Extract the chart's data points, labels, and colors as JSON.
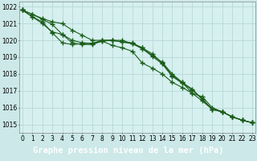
{
  "title": "Graphe pression niveau de la mer (hPa)",
  "background_color": "#cce8e8",
  "plot_bg": "#d6f0ef",
  "grid_color": "#b8d8d8",
  "line_color": "#1a5c1a",
  "x_ticks": [
    0,
    1,
    2,
    3,
    4,
    5,
    6,
    7,
    8,
    9,
    10,
    11,
    12,
    13,
    14,
    15,
    16,
    17,
    18,
    19,
    20,
    21,
    22,
    23
  ],
  "y_ticks": [
    1015,
    1016,
    1017,
    1018,
    1019,
    1020,
    1021,
    1022
  ],
  "ylim": [
    1014.5,
    1022.3
  ],
  "xlim": [
    -0.3,
    23.3
  ],
  "series": [
    [
      1021.8,
      1021.55,
      1021.3,
      1021.1,
      1021.0,
      1020.6,
      1020.3,
      1020.0,
      1020.0,
      1020.0,
      1019.9,
      1019.8,
      1019.55,
      1019.1,
      1018.7,
      1018.0,
      1017.5,
      1016.85,
      1016.4,
      1015.9,
      1015.75,
      1015.45,
      1015.25,
      1015.1
    ],
    [
      1021.8,
      1021.55,
      1021.25,
      1020.95,
      1020.35,
      1020.0,
      1019.85,
      1019.82,
      1020.0,
      1020.0,
      1020.0,
      1019.8,
      1019.5,
      1019.05,
      1018.6,
      1017.85,
      1017.45,
      1017.05,
      1016.5,
      1015.9,
      1015.75,
      1015.45,
      1015.25,
      1015.1
    ],
    [
      1021.8,
      1021.4,
      1021.0,
      1020.5,
      1020.35,
      1019.85,
      1019.75,
      1019.75,
      1019.95,
      1020.0,
      1019.9,
      1019.85,
      1019.55,
      1019.2,
      1018.65,
      1017.9,
      1017.5,
      1017.1,
      1016.5,
      1015.9,
      1015.75,
      1015.45,
      1015.25,
      1015.1
    ],
    [
      1021.8,
      1021.4,
      1021.1,
      1020.45,
      1019.85,
      1019.75,
      1019.8,
      1019.82,
      1019.95,
      1019.7,
      1019.55,
      1019.35,
      1018.65,
      1018.35,
      1018.0,
      1017.5,
      1017.2,
      1016.85,
      1016.65,
      1016.0,
      1015.75,
      1015.45,
      1015.25,
      1015.1
    ]
  ],
  "marker": "+",
  "markersize": 4,
  "markeredgewidth": 1.0,
  "linewidth": 0.8,
  "title_fontsize": 7.5,
  "tick_fontsize": 5.5,
  "title_bg": "#2e6b2e",
  "title_fg": "#ffffff"
}
